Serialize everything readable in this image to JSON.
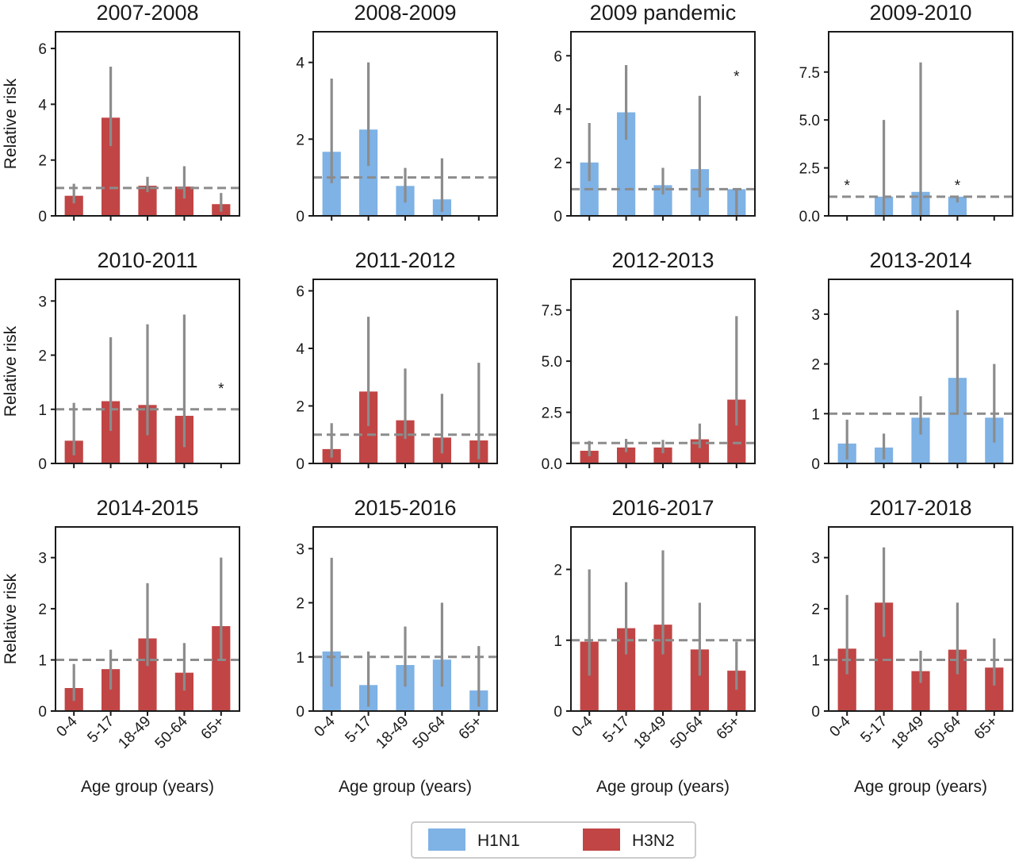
{
  "colors": {
    "H1N1": "#7fb2e5",
    "H3N2": "#c14545",
    "errorbar": "#8c8c8c",
    "reference_line": "#8c8c8c",
    "axis": "#1a1a1a"
  },
  "legend": {
    "items": [
      {
        "label": "H1N1",
        "color": "#7fb2e5"
      },
      {
        "label": "H3N2",
        "color": "#c14545"
      }
    ],
    "placement": "bottom-center"
  },
  "chart_data": [
    {
      "type": "bar",
      "title": "2007-2008",
      "subtype": "H3N2",
      "categories": [
        "0-4",
        "5-17",
        "18-49",
        "50-64",
        "65+"
      ],
      "values": [
        0.72,
        3.52,
        1.08,
        1.05,
        0.42
      ],
      "ci_low": [
        0.45,
        2.5,
        0.85,
        0.62,
        0.15
      ],
      "ci_high": [
        1.15,
        5.35,
        1.4,
        1.78,
        0.82
      ],
      "asterisk": [
        false,
        false,
        false,
        false,
        false
      ],
      "ylim": [
        0,
        6.6
      ],
      "yticks": [
        0,
        2,
        4,
        6
      ],
      "ytick_labels": [
        "0",
        "2",
        "4",
        "6"
      ],
      "reference": 1,
      "ylabel": "Relative risk",
      "xlabel": "",
      "show_xticklabels": false
    },
    {
      "type": "bar",
      "title": "2008-2009",
      "subtype": "H1N1",
      "categories": [
        "0-4",
        "5-17",
        "18-49",
        "50-64",
        "65+"
      ],
      "values": [
        1.67,
        2.25,
        0.78,
        0.43,
        null
      ],
      "ci_low": [
        0.85,
        1.3,
        0.35,
        0.1,
        null
      ],
      "ci_high": [
        3.58,
        4.0,
        1.25,
        1.5,
        null
      ],
      "asterisk": [
        false,
        false,
        false,
        false,
        false
      ],
      "ylim": [
        0,
        4.8
      ],
      "yticks": [
        0,
        2,
        4
      ],
      "ytick_labels": [
        "0",
        "2",
        "4"
      ],
      "reference": 1,
      "ylabel": "",
      "xlabel": "",
      "show_xticklabels": false
    },
    {
      "type": "bar",
      "title": "2009 pandemic",
      "subtype": "H1N1",
      "categories": [
        "0-4",
        "5-17",
        "18-49",
        "50-64",
        "65+"
      ],
      "values": [
        2.0,
        3.88,
        1.15,
        1.75,
        1.0
      ],
      "ci_low": [
        1.3,
        2.85,
        0.8,
        0.7,
        0.0
      ],
      "ci_high": [
        3.48,
        5.65,
        1.8,
        4.5,
        1.0
      ],
      "asterisk": [
        false,
        false,
        false,
        false,
        true
      ],
      "ylim": [
        0,
        6.9
      ],
      "yticks": [
        0,
        2,
        4,
        6
      ],
      "ytick_labels": [
        "0",
        "2",
        "4",
        "6"
      ],
      "reference": 1,
      "ylabel": "",
      "xlabel": "",
      "show_xticklabels": false
    },
    {
      "type": "bar",
      "title": "2009-2010",
      "subtype": "H1N1",
      "categories": [
        "0-4",
        "5-17",
        "18-49",
        "50-64",
        "65+"
      ],
      "values": [
        null,
        1.0,
        1.25,
        1.0,
        null
      ],
      "ci_low": [
        null,
        0.0,
        0.0,
        0.7,
        null
      ],
      "ci_high": [
        null,
        5.0,
        8.0,
        1.0,
        null
      ],
      "asterisk": [
        true,
        false,
        false,
        true,
        false
      ],
      "ylim": [
        0,
        9.6
      ],
      "yticks": [
        0,
        2.5,
        5,
        7.5
      ],
      "ytick_labels": [
        "0.0",
        "2.5",
        "5.0",
        "7.5"
      ],
      "reference": 1,
      "ylabel": "",
      "xlabel": "",
      "show_xticklabels": false
    },
    {
      "type": "bar",
      "title": "2010-2011",
      "subtype": "H3N2",
      "categories": [
        "0-4",
        "5-17",
        "18-49",
        "50-64",
        "65+"
      ],
      "values": [
        0.42,
        1.15,
        1.08,
        0.88,
        null
      ],
      "ci_low": [
        0.15,
        0.6,
        0.52,
        0.3,
        null
      ],
      "ci_high": [
        1.12,
        2.33,
        2.57,
        2.75,
        null
      ],
      "asterisk": [
        false,
        false,
        false,
        false,
        true
      ],
      "ylim": [
        0,
        3.4
      ],
      "yticks": [
        0,
        1,
        2,
        3
      ],
      "ytick_labels": [
        "0",
        "1",
        "2",
        "3"
      ],
      "reference": 1,
      "ylabel": "Relative risk",
      "xlabel": "",
      "show_xticklabels": false
    },
    {
      "type": "bar",
      "title": "2011-2012",
      "subtype": "H3N2",
      "categories": [
        "0-4",
        "5-17",
        "18-49",
        "50-64",
        "65+"
      ],
      "values": [
        0.5,
        2.5,
        1.5,
        0.9,
        0.8
      ],
      "ci_low": [
        0.2,
        1.3,
        0.85,
        0.35,
        0.15
      ],
      "ci_high": [
        1.4,
        5.1,
        3.3,
        2.42,
        3.5
      ],
      "asterisk": [
        false,
        false,
        false,
        false,
        false
      ],
      "ylim": [
        0,
        6.4
      ],
      "yticks": [
        0,
        2,
        4,
        6
      ],
      "ytick_labels": [
        "0",
        "2",
        "4",
        "6"
      ],
      "reference": 1,
      "ylabel": "",
      "xlabel": "",
      "show_xticklabels": false
    },
    {
      "type": "bar",
      "title": "2012-2013",
      "subtype": "H3N2",
      "categories": [
        "0-4",
        "5-17",
        "18-49",
        "50-64",
        "65+"
      ],
      "values": [
        0.62,
        0.78,
        0.78,
        1.18,
        3.12
      ],
      "ci_low": [
        0.35,
        0.55,
        0.5,
        0.75,
        1.85
      ],
      "ci_high": [
        1.1,
        1.2,
        1.15,
        1.95,
        7.2
      ],
      "asterisk": [
        false,
        false,
        false,
        false,
        false
      ],
      "ylim": [
        0,
        9.0
      ],
      "yticks": [
        0,
        2.5,
        5,
        7.5
      ],
      "ytick_labels": [
        "0.0",
        "2.5",
        "5.0",
        "7.5"
      ],
      "reference": 1,
      "ylabel": "",
      "xlabel": "",
      "show_xticklabels": false
    },
    {
      "type": "bar",
      "title": "2013-2014",
      "subtype": "H1N1",
      "categories": [
        "0-4",
        "5-17",
        "18-49",
        "50-64",
        "65+"
      ],
      "values": [
        0.4,
        0.32,
        0.92,
        1.72,
        0.92
      ],
      "ci_low": [
        0.08,
        0.08,
        0.58,
        1.0,
        0.42
      ],
      "ci_high": [
        0.88,
        0.6,
        1.35,
        3.08,
        2.0
      ],
      "asterisk": [
        false,
        false,
        false,
        false,
        false
      ],
      "ylim": [
        0,
        3.7
      ],
      "yticks": [
        0,
        1,
        2,
        3
      ],
      "ytick_labels": [
        "0",
        "1",
        "2",
        "3"
      ],
      "reference": 1,
      "ylabel": "",
      "xlabel": "",
      "show_xticklabels": false
    },
    {
      "type": "bar",
      "title": "2014-2015",
      "subtype": "H3N2",
      "categories": [
        "0-4",
        "5-17",
        "18-49",
        "50-64",
        "65+"
      ],
      "values": [
        0.45,
        0.82,
        1.42,
        0.75,
        1.66
      ],
      "ci_low": [
        0.2,
        0.42,
        0.88,
        0.4,
        1.0
      ],
      "ci_high": [
        0.92,
        1.2,
        2.5,
        1.33,
        3.0
      ],
      "asterisk": [
        false,
        false,
        false,
        false,
        false
      ],
      "ylim": [
        0,
        3.6
      ],
      "yticks": [
        0,
        1,
        2,
        3
      ],
      "ytick_labels": [
        "0",
        "1",
        "2",
        "3"
      ],
      "reference": 1,
      "ylabel": "Relative risk",
      "xlabel": "Age group (years)",
      "show_xticklabels": true
    },
    {
      "type": "bar",
      "title": "2015-2016",
      "subtype": "H1N1",
      "categories": [
        "0-4",
        "5-17",
        "18-49",
        "50-64",
        "65+"
      ],
      "values": [
        1.1,
        0.48,
        0.85,
        0.95,
        0.38
      ],
      "ci_low": [
        0.45,
        0.08,
        0.45,
        0.45,
        0.08
      ],
      "ci_high": [
        2.83,
        1.1,
        1.56,
        2.0,
        1.2
      ],
      "asterisk": [
        false,
        false,
        false,
        false,
        false
      ],
      "ylim": [
        0,
        3.4
      ],
      "yticks": [
        0,
        1,
        2,
        3
      ],
      "ytick_labels": [
        "0",
        "1",
        "2",
        "3"
      ],
      "reference": 1,
      "ylabel": "",
      "xlabel": "Age group (years)",
      "show_xticklabels": true
    },
    {
      "type": "bar",
      "title": "2016-2017",
      "subtype": "H3N2",
      "categories": [
        "0-4",
        "5-17",
        "18-49",
        "50-64",
        "65+"
      ],
      "values": [
        0.98,
        1.17,
        1.22,
        0.87,
        0.57
      ],
      "ci_low": [
        0.5,
        0.8,
        0.8,
        0.5,
        0.3
      ],
      "ci_high": [
        2.0,
        1.82,
        2.27,
        1.53,
        0.98
      ],
      "asterisk": [
        false,
        false,
        false,
        false,
        false
      ],
      "ylim": [
        0,
        2.6
      ],
      "yticks": [
        0,
        1,
        2
      ],
      "ytick_labels": [
        "0",
        "1",
        "2"
      ],
      "reference": 1,
      "ylabel": "",
      "xlabel": "Age group (years)",
      "show_xticklabels": true
    },
    {
      "type": "bar",
      "title": "2017-2018",
      "subtype": "H3N2",
      "categories": [
        "0-4",
        "5-17",
        "18-49",
        "50-64",
        "65+"
      ],
      "values": [
        1.22,
        2.12,
        0.78,
        1.2,
        0.85
      ],
      "ci_low": [
        0.72,
        1.45,
        0.55,
        0.72,
        0.5
      ],
      "ci_high": [
        2.27,
        3.2,
        1.18,
        2.12,
        1.42
      ],
      "asterisk": [
        false,
        false,
        false,
        false,
        false
      ],
      "ylim": [
        0,
        3.6
      ],
      "yticks": [
        0,
        1,
        2,
        3
      ],
      "ytick_labels": [
        "0",
        "1",
        "2",
        "3"
      ],
      "reference": 1,
      "ylabel": "",
      "xlabel": "Age group (years)",
      "show_xticklabels": true
    }
  ]
}
